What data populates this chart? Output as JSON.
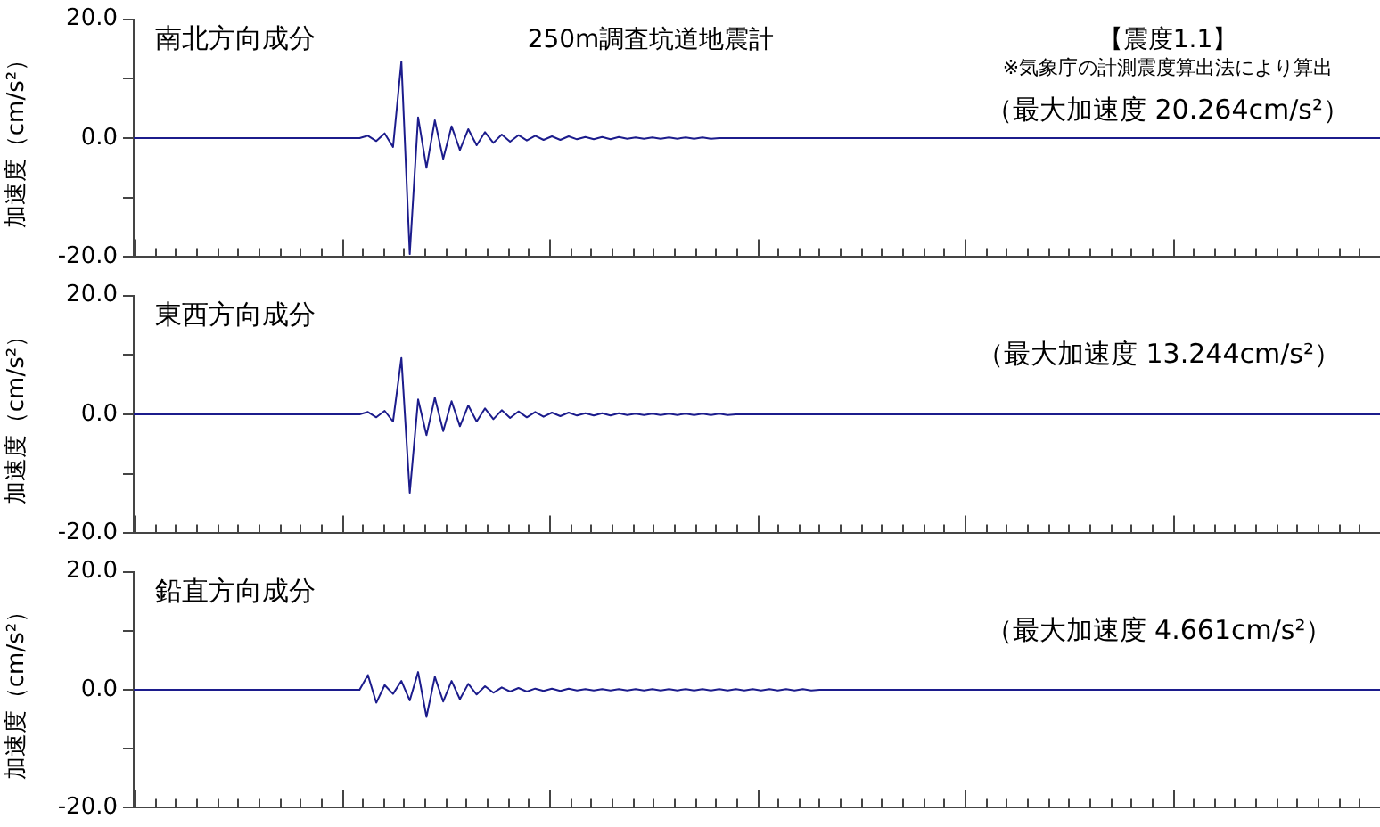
{
  "chart_data": [
    {
      "type": "line",
      "title": "南北方向成分",
      "ylabel": "加速度（cm/s²）",
      "annotations": [
        "250m調査坑道地震計",
        "【震度1.1】",
        "※気象庁の計測震度算出法により算出",
        "（最大加速度 20.264cm/s²）"
      ],
      "categories": [
        null,
        null,
        null,
        null,
        null,
        null,
        null,
        null,
        null,
        null,
        null,
        null,
        null,
        null,
        null,
        null,
        null,
        null,
        null,
        null,
        null,
        null,
        null,
        null,
        null,
        null,
        null,
        null,
        null,
        null,
        null,
        null,
        null,
        null,
        null,
        null,
        null,
        null,
        null,
        null,
        null,
        null,
        null,
        null,
        null,
        null,
        null,
        null,
        null,
        null,
        null,
        null,
        null,
        null,
        null,
        null,
        null,
        null,
        null,
        null,
        null,
        null,
        null,
        null,
        null,
        null,
        null,
        null,
        null,
        null,
        null,
        null,
        null,
        null,
        null,
        null,
        null,
        null,
        null,
        null,
        null,
        null,
        null,
        null,
        null,
        null,
        null,
        null,
        null,
        null,
        null,
        null,
        null,
        null,
        null,
        null,
        null,
        null,
        null,
        null,
        null,
        null,
        null,
        null,
        null,
        null,
        null,
        null,
        null,
        null,
        null,
        null,
        null,
        null,
        null,
        null,
        null,
        null,
        null,
        null,
        null,
        null,
        null,
        null,
        null,
        null,
        null,
        null,
        null,
        null,
        null,
        null,
        null,
        null,
        null,
        null,
        null,
        null,
        null,
        null,
        null,
        null,
        null,
        null,
        null,
        null,
        null,
        null,
        null,
        null
      ],
      "series": [
        {
          "color": "#1c1c8c",
          "values": [
            0,
            0,
            0,
            0,
            0,
            0,
            0,
            0,
            0,
            0,
            0,
            0,
            0,
            0,
            0,
            0,
            0,
            0,
            0,
            0,
            0,
            0,
            0,
            0,
            0,
            0,
            0,
            0,
            0.4,
            -0.5,
            0.8,
            -1.5,
            12.9,
            -19.5,
            3.5,
            -5,
            3,
            -3.5,
            2,
            -2,
            1.5,
            -1.2,
            1,
            -0.8,
            0.6,
            -0.6,
            0.5,
            -0.4,
            0.4,
            -0.3,
            0.3,
            -0.3,
            0.3,
            -0.2,
            0.2,
            -0.2,
            0.2,
            -0.2,
            0.2,
            -0.1,
            0.1,
            -0.1,
            0.1,
            -0.1,
            0.1,
            -0.1,
            0.1,
            -0.1,
            0.1,
            -0.1,
            0,
            0,
            0,
            0,
            0,
            0,
            0,
            0,
            0,
            0,
            0,
            0,
            0,
            0,
            0,
            0,
            0,
            0,
            0,
            0,
            0,
            0,
            0,
            0,
            0,
            0,
            0,
            0,
            0,
            0,
            0,
            0,
            0,
            0,
            0,
            0,
            0,
            0,
            0,
            0,
            0,
            0,
            0,
            0,
            0,
            0,
            0,
            0,
            0,
            0,
            0,
            0,
            0,
            0,
            0,
            0,
            0,
            0,
            0,
            0,
            0,
            0,
            0,
            0,
            0,
            0,
            0,
            0,
            0,
            0,
            0,
            0,
            0,
            0,
            0,
            0,
            0,
            0,
            0,
            0
          ]
        }
      ],
      "ylim": [
        -20,
        20
      ],
      "yticks": [
        {
          "value": -20,
          "label": "-20.0"
        },
        {
          "value": -10,
          "label": null
        },
        {
          "value": 0,
          "label": "0.0"
        },
        {
          "value": 10,
          "label": null
        },
        {
          "value": 20,
          "label": "20.0"
        }
      ],
      "grid": false,
      "legend": false
    },
    {
      "type": "line",
      "title": "東西方向成分",
      "ylabel": "加速度（cm/s²）",
      "annotations": [
        "（最大加速度 13.244cm/s²）"
      ],
      "categories": [
        null,
        null,
        null,
        null,
        null,
        null,
        null,
        null,
        null,
        null,
        null,
        null,
        null,
        null,
        null,
        null,
        null,
        null,
        null,
        null,
        null,
        null,
        null,
        null,
        null,
        null,
        null,
        null,
        null,
        null,
        null,
        null,
        null,
        null,
        null,
        null,
        null,
        null,
        null,
        null,
        null,
        null,
        null,
        null,
        null,
        null,
        null,
        null,
        null,
        null,
        null,
        null,
        null,
        null,
        null,
        null,
        null,
        null,
        null,
        null,
        null,
        null,
        null,
        null,
        null,
        null,
        null,
        null,
        null,
        null,
        null,
        null,
        null,
        null,
        null,
        null,
        null,
        null,
        null,
        null,
        null,
        null,
        null,
        null,
        null,
        null,
        null,
        null,
        null,
        null,
        null,
        null,
        null,
        null,
        null,
        null,
        null,
        null,
        null,
        null,
        null,
        null,
        null,
        null,
        null,
        null,
        null,
        null,
        null,
        null,
        null,
        null,
        null,
        null,
        null,
        null,
        null,
        null,
        null,
        null,
        null,
        null,
        null,
        null,
        null,
        null,
        null,
        null,
        null,
        null,
        null,
        null,
        null,
        null,
        null,
        null,
        null,
        null,
        null,
        null,
        null,
        null,
        null,
        null,
        null,
        null,
        null,
        null,
        null,
        null
      ],
      "series": [
        {
          "color": "#1c1c8c",
          "values": [
            0,
            0,
            0,
            0,
            0,
            0,
            0,
            0,
            0,
            0,
            0,
            0,
            0,
            0,
            0,
            0,
            0,
            0,
            0,
            0,
            0,
            0,
            0,
            0,
            0,
            0,
            0,
            0,
            0.4,
            -0.5,
            0.6,
            -1.2,
            9.5,
            -13.2,
            2.5,
            -3.5,
            2.8,
            -2.8,
            2.2,
            -2,
            1.5,
            -1.2,
            1,
            -0.8,
            0.7,
            -0.6,
            0.5,
            -0.5,
            0.4,
            -0.4,
            0.3,
            -0.3,
            0.3,
            -0.2,
            0.2,
            -0.2,
            0.2,
            -0.2,
            0.2,
            -0.1,
            0.1,
            -0.1,
            0.1,
            -0.1,
            0.1,
            -0.1,
            0.1,
            -0.1,
            0.1,
            -0.1,
            0.1,
            -0.1,
            0,
            0,
            0,
            0,
            0,
            0,
            0,
            0,
            0,
            0,
            0,
            0,
            0,
            0,
            0,
            0,
            0,
            0,
            0,
            0,
            0,
            0,
            0,
            0,
            0,
            0,
            0,
            0,
            0,
            0,
            0,
            0,
            0,
            0,
            0,
            0,
            0,
            0,
            0,
            0,
            0,
            0,
            0,
            0,
            0,
            0,
            0,
            0,
            0,
            0,
            0,
            0,
            0,
            0,
            0,
            0,
            0,
            0,
            0,
            0,
            0,
            0,
            0,
            0,
            0,
            0,
            0,
            0,
            0,
            0,
            0,
            0,
            0,
            0,
            0,
            0,
            0,
            0
          ]
        }
      ],
      "ylim": [
        -20,
        20
      ],
      "yticks": [
        {
          "value": -20,
          "label": "-20.0"
        },
        {
          "value": -10,
          "label": null
        },
        {
          "value": 0,
          "label": "0.0"
        },
        {
          "value": 10,
          "label": null
        },
        {
          "value": 20,
          "label": "20.0"
        }
      ],
      "grid": false,
      "legend": false
    },
    {
      "type": "line",
      "title": "鉛直方向成分",
      "ylabel": "加速度（cm/s²）",
      "annotations": [
        "（最大加速度 4.661cm/s²）"
      ],
      "categories": [
        null,
        null,
        null,
        null,
        null,
        null,
        null,
        null,
        null,
        null,
        null,
        null,
        null,
        null,
        null,
        null,
        null,
        null,
        null,
        null,
        null,
        null,
        null,
        null,
        null,
        null,
        null,
        null,
        null,
        null,
        null,
        null,
        null,
        null,
        null,
        null,
        null,
        null,
        null,
        null,
        null,
        null,
        null,
        null,
        null,
        null,
        null,
        null,
        null,
        null,
        null,
        null,
        null,
        null,
        null,
        null,
        null,
        null,
        null,
        null,
        null,
        null,
        null,
        null,
        null,
        null,
        null,
        null,
        null,
        null,
        null,
        null,
        null,
        null,
        null,
        null,
        null,
        null,
        null,
        null,
        null,
        null,
        null,
        null,
        null,
        null,
        null,
        null,
        null,
        null,
        null,
        null,
        null,
        null,
        null,
        null,
        null,
        null,
        null,
        null,
        null,
        null,
        null,
        null,
        null,
        null,
        null,
        null,
        null,
        null,
        null,
        null,
        null,
        null,
        null,
        null,
        null,
        null,
        null,
        null,
        null,
        null,
        null,
        null,
        null,
        null,
        null,
        null,
        null,
        null,
        null,
        null,
        null,
        null,
        null,
        null,
        null,
        null,
        null,
        null,
        null,
        null,
        null,
        null,
        null,
        null,
        null,
        null,
        null,
        null
      ],
      "series": [
        {
          "color": "#1c1c8c",
          "values": [
            0,
            0,
            0,
            0,
            0,
            0,
            0,
            0,
            0,
            0,
            0,
            0,
            0,
            0,
            0,
            0,
            0,
            0,
            0,
            0,
            0,
            0,
            0,
            0,
            0,
            0,
            0,
            0,
            2.5,
            -2.2,
            0.8,
            -0.7,
            1.5,
            -1.8,
            3,
            -4.6,
            2.2,
            -2,
            1.5,
            -1.6,
            1,
            -0.8,
            0.6,
            -0.5,
            0.4,
            -0.3,
            0.3,
            -0.3,
            0.2,
            -0.2,
            0.2,
            -0.2,
            0.2,
            -0.1,
            0.1,
            -0.1,
            0.1,
            -0.1,
            0.1,
            -0.1,
            0.1,
            -0.1,
            0.1,
            -0.1,
            0.1,
            -0.1,
            0.1,
            -0.1,
            0.1,
            -0.1,
            0.1,
            -0.1,
            0.1,
            -0.1,
            0.1,
            -0.1,
            0.1,
            -0.1,
            0.1,
            -0.1,
            0.1,
            -0.1,
            0,
            0,
            0,
            0,
            0,
            0,
            0,
            0,
            0,
            0,
            0,
            0,
            0,
            0,
            0,
            0,
            0,
            0,
            0,
            0,
            0,
            0,
            0,
            0,
            0,
            0,
            0,
            0,
            0,
            0,
            0,
            0,
            0,
            0,
            0,
            0,
            0,
            0,
            0,
            0,
            0,
            0,
            0,
            0,
            0,
            0,
            0,
            0,
            0,
            0,
            0,
            0,
            0,
            0,
            0,
            0,
            0,
            0,
            0,
            0,
            0,
            0,
            0,
            0,
            0,
            0,
            0,
            0
          ]
        }
      ],
      "ylim": [
        -20,
        20
      ],
      "yticks": [
        {
          "value": -20,
          "label": "-20.0"
        },
        {
          "value": -10,
          "label": null
        },
        {
          "value": 0,
          "label": "0.0"
        },
        {
          "value": 10,
          "label": null
        },
        {
          "value": 20,
          "label": "20.0"
        }
      ],
      "grid": false,
      "legend": false
    }
  ]
}
